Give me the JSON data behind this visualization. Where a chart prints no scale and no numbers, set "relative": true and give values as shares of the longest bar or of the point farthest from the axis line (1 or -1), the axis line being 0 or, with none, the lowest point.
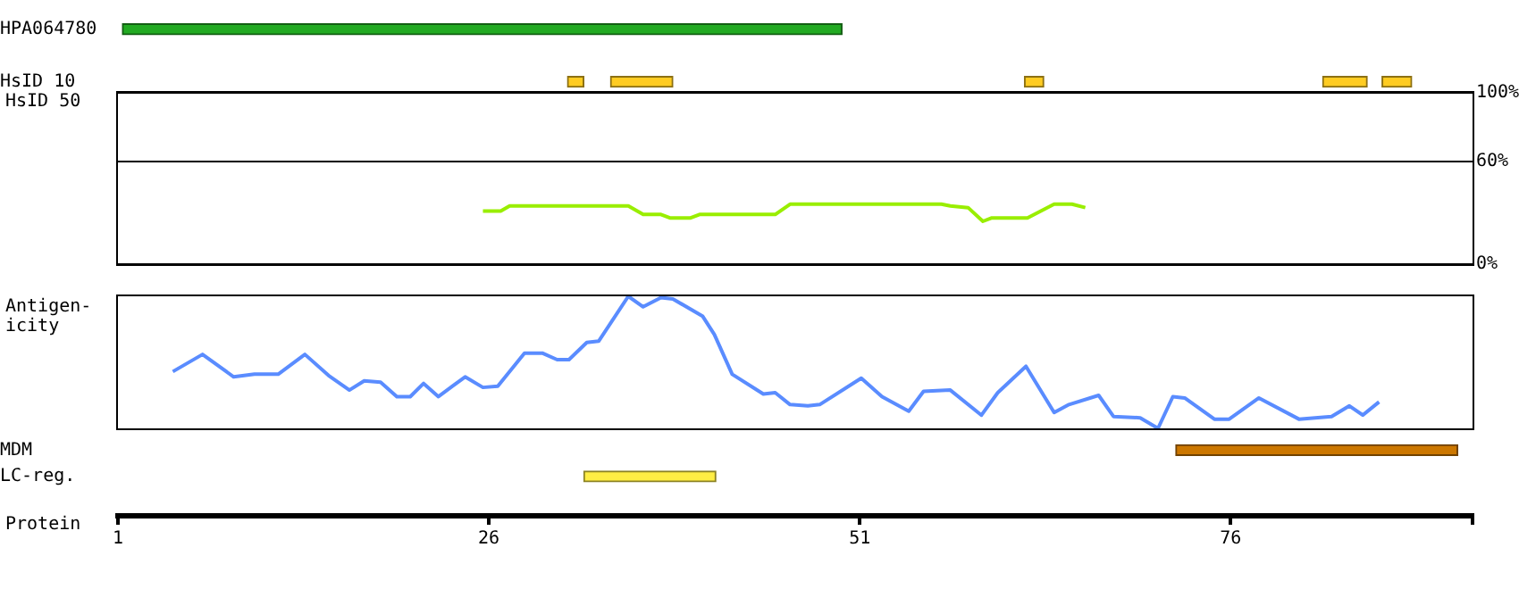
{
  "chart_data": [
    {
      "type": "bar",
      "orientation": "horizontal",
      "categories": [
        "HPA064780",
        null,
        "HsID 10",
        null,
        null,
        null,
        null,
        null,
        null,
        null,
        null,
        null,
        null,
        null,
        null,
        null,
        "MDM",
        "LC-reg.",
        null
      ],
      "xlabel": "Protein",
      "xlim": [
        1,
        92.3
      ],
      "xticks": [
        1,
        26,
        51,
        76,
        {
          "value": 92.3,
          "label": null
        }
      ],
      "series": [
        {
          "color": "#22aa22",
          "base": [
            1.3,
            null,
            null,
            null,
            null,
            null,
            null,
            null,
            null,
            null,
            null,
            null,
            null,
            null,
            null,
            null,
            null,
            null,
            null
          ],
          "values": [
            48.5,
            null,
            null,
            null,
            null,
            null,
            null,
            null,
            null,
            null,
            null,
            null,
            null,
            null,
            null,
            null,
            null,
            null,
            null
          ]
        },
        {
          "color": "#ffcc22",
          "base": [
            null,
            null,
            31.3,
            null,
            null,
            null,
            null,
            null,
            null,
            null,
            null,
            null,
            null,
            null,
            null,
            null,
            null,
            null,
            null
          ],
          "values": [
            null,
            null,
            1.1,
            null,
            null,
            null,
            null,
            null,
            null,
            null,
            null,
            null,
            null,
            null,
            null,
            null,
            null,
            null,
            null
          ]
        },
        {
          "color": "#ffcc22",
          "base": [
            null,
            null,
            34.2,
            null,
            null,
            null,
            null,
            null,
            null,
            null,
            null,
            null,
            null,
            null,
            null,
            null,
            null,
            null,
            null
          ],
          "values": [
            null,
            null,
            4.2,
            null,
            null,
            null,
            null,
            null,
            null,
            null,
            null,
            null,
            null,
            null,
            null,
            null,
            null,
            null,
            null
          ]
        },
        {
          "color": "#ffcc22",
          "base": [
            null,
            null,
            62.1,
            null,
            null,
            null,
            null,
            null,
            null,
            null,
            null,
            null,
            null,
            null,
            null,
            null,
            null,
            null,
            null
          ],
          "values": [
            null,
            null,
            1.3,
            null,
            null,
            null,
            null,
            null,
            null,
            null,
            null,
            null,
            null,
            null,
            null,
            null,
            null,
            null,
            null
          ]
        },
        {
          "color": "#ffcc22",
          "base": [
            null,
            null,
            82.2,
            null,
            null,
            null,
            null,
            null,
            null,
            null,
            null,
            null,
            null,
            null,
            null,
            null,
            null,
            null,
            null
          ],
          "values": [
            null,
            null,
            3,
            null,
            null,
            null,
            null,
            null,
            null,
            null,
            null,
            null,
            null,
            null,
            null,
            null,
            null,
            null,
            null
          ]
        },
        {
          "color": "#ffcc22",
          "base": [
            null,
            null,
            86.2,
            null,
            null,
            null,
            null,
            null,
            null,
            null,
            null,
            null,
            null,
            null,
            null,
            null,
            null,
            null,
            null
          ],
          "values": [
            null,
            null,
            2,
            null,
            null,
            null,
            null,
            null,
            null,
            null,
            null,
            null,
            null,
            null,
            null,
            null,
            null,
            null,
            null
          ]
        },
        {
          "color": "#cc7700",
          "base": [
            null,
            null,
            null,
            null,
            null,
            null,
            null,
            null,
            null,
            null,
            null,
            null,
            null,
            null,
            null,
            null,
            72.3,
            null,
            null
          ],
          "values": [
            null,
            null,
            null,
            null,
            null,
            null,
            null,
            null,
            null,
            null,
            null,
            null,
            null,
            null,
            null,
            null,
            19,
            null,
            null
          ]
        },
        {
          "color": "#ffee44",
          "base": [
            null,
            null,
            null,
            null,
            null,
            null,
            null,
            null,
            null,
            null,
            null,
            null,
            null,
            null,
            null,
            null,
            null,
            32.4,
            null
          ],
          "values": [
            null,
            null,
            null,
            null,
            null,
            null,
            null,
            null,
            null,
            null,
            null,
            null,
            null,
            null,
            null,
            null,
            null,
            8.9,
            null
          ]
        }
      ]
    },
    {
      "type": "line",
      "title": "HsID 50",
      "xlim": [
        1,
        92.3
      ],
      "ylim": [
        0,
        100
      ],
      "yticks": [
        {
          "value": 0,
          "label": "0%"
        },
        {
          "value": 60,
          "label": "60%"
        },
        {
          "value": 100,
          "label": "100%"
        }
      ],
      "grid": "y",
      "tick_labels": "y",
      "marker": "none",
      "series": [
        {
          "color": "#99ee00",
          "x": [
            25.6,
            26.8,
            27.4,
            35.4,
            36.4,
            37.6,
            38.2,
            39.6,
            40.2,
            45.3,
            46.3,
            56.5,
            57.1,
            58.3,
            59.3,
            59.9,
            62.3,
            64.1,
            65.3,
            66.2
          ],
          "values": [
            31,
            31,
            34,
            34,
            29,
            29,
            27,
            27,
            29,
            29,
            35,
            35,
            34,
            33,
            25,
            27,
            27,
            35,
            35,
            33
          ]
        }
      ]
    },
    {
      "type": "line",
      "ylabel": "Antigen-icity",
      "relative": true,
      "xlim": [
        1,
        92.3
      ],
      "tick_labels": false,
      "marker": "none",
      "series": [
        {
          "color": "#5a8cff",
          "x": [
            4.7,
            6.7,
            8.8,
            10.2,
            11.8,
            13.6,
            15.2,
            16.6,
            17.6,
            18.7,
            19.8,
            20.7,
            21.6,
            22.6,
            24.4,
            25.6,
            26.6,
            28.4,
            29.6,
            30.6,
            31.4,
            32.6,
            33.4,
            35.4,
            36.4,
            37.6,
            38.4,
            40.4,
            41.2,
            42.4,
            44.5,
            45.3,
            46.3,
            47.5,
            48.3,
            51.1,
            52.5,
            54.3,
            55.3,
            57.1,
            59.2,
            60.3,
            62.2,
            64.1,
            65.1,
            67.1,
            68.1,
            69.9,
            71.1,
            72.1,
            72.9,
            74.9,
            75.9,
            77.9,
            80.6,
            82.8,
            84.0,
            84.9,
            86.0
          ],
          "values": [
            0.43,
            0.56,
            0.39,
            0.41,
            0.41,
            0.56,
            0.4,
            0.29,
            0.36,
            0.35,
            0.24,
            0.24,
            0.34,
            0.24,
            0.39,
            0.31,
            0.32,
            0.57,
            0.57,
            0.52,
            0.52,
            0.65,
            0.66,
            1,
            0.92,
            0.99,
            0.98,
            0.85,
            0.71,
            0.41,
            0.26,
            0.27,
            0.18,
            0.17,
            0.18,
            0.38,
            0.24,
            0.13,
            0.28,
            0.29,
            0.1,
            0.27,
            0.47,
            0.12,
            0.18,
            0.25,
            0.09,
            0.08,
            0,
            0.24,
            0.23,
            0.07,
            0.07,
            0.23,
            0.07,
            0.09,
            0.17,
            0.1,
            0.2
          ]
        }
      ]
    }
  ]
}
